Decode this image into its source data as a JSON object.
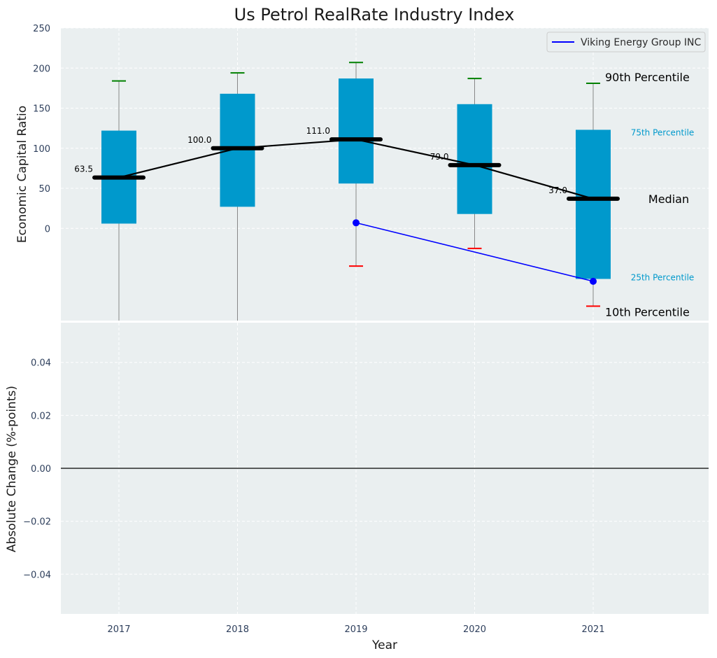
{
  "chart_data": [
    {
      "type": "box",
      "title": "Us Petrol RealRate Industry Index",
      "xlabel": "",
      "ylabel": "Economic Capital Ratio",
      "ylim": [
        -115,
        250
      ],
      "yticks": [
        0,
        50,
        100,
        150,
        200,
        250
      ],
      "categories": [
        "2017",
        "2018",
        "2019",
        "2020",
        "2021"
      ],
      "percentiles": {
        "p10": [
          null,
          null,
          -47,
          -25,
          -97
        ],
        "p25": [
          6,
          27,
          56,
          18,
          -63
        ],
        "median": [
          63.5,
          100.0,
          111.0,
          79.0,
          37.0
        ],
        "p75": [
          122,
          168,
          187,
          155,
          123
        ],
        "p90": [
          184,
          194,
          207,
          187,
          181
        ]
      },
      "median_labels": [
        "63.5",
        "100.0",
        "111.0",
        "79.0",
        "37.0"
      ],
      "series": [
        {
          "name": "Viking Energy Group INC",
          "color": "#0000ff",
          "x": [
            "2019",
            "2021"
          ],
          "values": [
            7,
            -66
          ]
        }
      ],
      "annotations": {
        "p90": "90th Percentile",
        "p75": "75th Percentile",
        "median": "Median",
        "p25": "25th Percentile",
        "p10": "10th Percentile"
      },
      "legend_location": "top-right",
      "grid": true
    },
    {
      "type": "line",
      "title": "",
      "xlabel": "Year",
      "ylabel": "Absolute Change (%-points)",
      "ylim": [
        -0.055,
        0.055
      ],
      "yticks": [
        -0.04,
        -0.02,
        0.0,
        0.02,
        0.04
      ],
      "ytick_labels": [
        "−0.04",
        "−0.02",
        "0.00",
        "0.02",
        "0.04"
      ],
      "categories": [
        "2017",
        "2018",
        "2019",
        "2020",
        "2021"
      ],
      "reference_line": 0,
      "series": [],
      "grid": true
    }
  ],
  "colors": {
    "box": "#0099cc",
    "whisker": "#888888",
    "p90_cap": "#008000",
    "p10_cap": "#ff0000",
    "median": "#000000",
    "company": "#0000ff",
    "panel_bg": "#eaeff0"
  }
}
